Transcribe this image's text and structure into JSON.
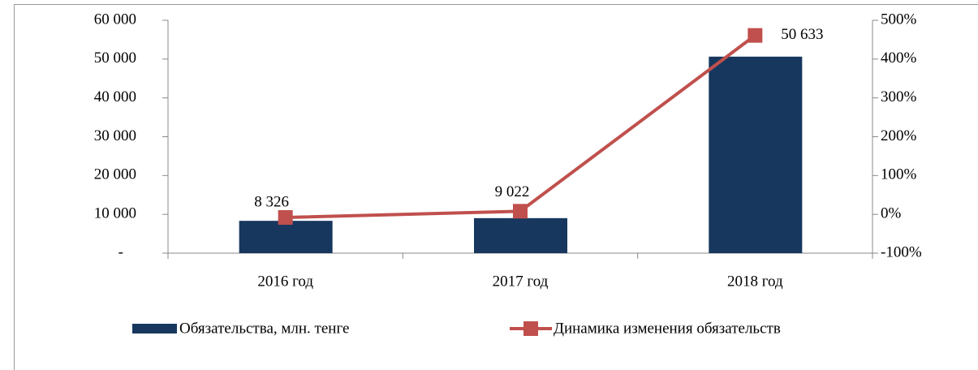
{
  "chart_data": {
    "type": "bar-line",
    "categories": [
      "2016 год",
      "2017 год",
      "2018 год"
    ],
    "series": [
      {
        "name": "Обязательства, млн. тенге",
        "type": "bar",
        "color": "#17375e",
        "values": [
          8326,
          9022,
          50633
        ],
        "value_labels": [
          "8 326",
          "9 022",
          "50 633"
        ]
      },
      {
        "name": "Динамика изменения обязательств",
        "type": "line",
        "axis": "y2",
        "color": "#c0504d",
        "values": [
          -8,
          8,
          461
        ]
      }
    ],
    "ylim": [
      0,
      60000
    ],
    "yticks": [
      {
        "value": 0,
        "label": "-"
      },
      {
        "value": 10000,
        "label": "10 000"
      },
      {
        "value": 20000,
        "label": "20 000"
      },
      {
        "value": 30000,
        "label": "30 000"
      },
      {
        "value": 40000,
        "label": "40 000"
      },
      {
        "value": 50000,
        "label": "50 000"
      },
      {
        "value": 60000,
        "label": "60 000"
      }
    ],
    "y2lim": [
      -100,
      500
    ],
    "y2ticks": [
      {
        "value": -100,
        "label": "-100%"
      },
      {
        "value": 0,
        "label": "0%"
      },
      {
        "value": 100,
        "label": "100%"
      },
      {
        "value": 200,
        "label": "200%"
      },
      {
        "value": 300,
        "label": "300%"
      },
      {
        "value": 400,
        "label": "400%"
      },
      {
        "value": 500,
        "label": "500%"
      }
    ],
    "legend": "bottom",
    "grid": false
  }
}
